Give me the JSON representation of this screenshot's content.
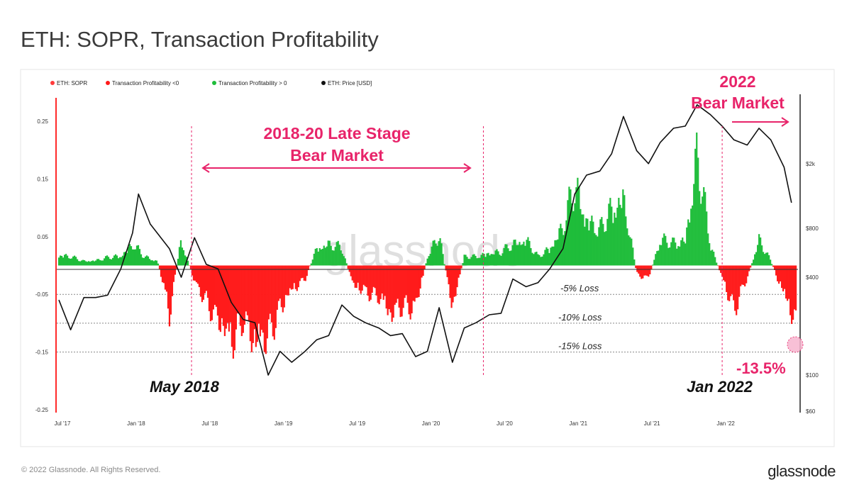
{
  "header": {
    "title": "ETH: SOPR, Transaction Profitability"
  },
  "footer": {
    "copyright": "© 2022 Glassnode. All Rights Reserved.",
    "brand": "glassnode"
  },
  "watermark": "glassnode",
  "colors": {
    "loss": "#ff1a1a",
    "profit": "#1fbd3a",
    "price": "#111111",
    "annotation": "#e8246a",
    "sopr": "#ff3b3b"
  },
  "chart_data": {
    "type": "bar",
    "title": "ETH: SOPR, Transaction Profitability",
    "legend": [
      {
        "name": "ETH: SOPR",
        "color": "#ff3b3b"
      },
      {
        "name": "Transaction Profitability <0",
        "color": "#ff1a1a"
      },
      {
        "name": "Transaction Profitability > 0",
        "color": "#1fbd3a"
      },
      {
        "name": "ETH: Price [USD]",
        "color": "#111111"
      }
    ],
    "legend_position": "top-left",
    "x_ticks": [
      "Jul '17",
      "Jan '18",
      "Jul '18",
      "Jan '19",
      "Jul '19",
      "Jan '20",
      "Jul '20",
      "Jan '21",
      "Jul '21",
      "Jan '22"
    ],
    "y_left": {
      "ticks": [
        "0.25",
        "0.15",
        "0.05",
        "-0.05",
        "-0.15",
        "-0.25"
      ],
      "range": [
        -0.25,
        0.25
      ]
    },
    "y_right": {
      "scale": "log",
      "ticks": [
        "$2k",
        "$800",
        "$400",
        "$100",
        "$60"
      ],
      "range": [
        60,
        4500
      ]
    },
    "reference_lines": [
      {
        "value": -0.05,
        "label": "-5% Loss"
      },
      {
        "value": -0.1,
        "label": "-10% Loss"
      },
      {
        "value": -0.15,
        "label": "-15% Loss"
      }
    ],
    "profitability": [
      {
        "x": 2017.5,
        "y": 0.025
      },
      {
        "x": 2017.58,
        "y": 0.02
      },
      {
        "x": 2017.67,
        "y": 0.01
      },
      {
        "x": 2017.75,
        "y": 0.012
      },
      {
        "x": 2017.83,
        "y": 0.018
      },
      {
        "x": 2017.92,
        "y": 0.022
      },
      {
        "x": 2018.0,
        "y": 0.05
      },
      {
        "x": 2018.08,
        "y": 0.02
      },
      {
        "x": 2018.17,
        "y": 0.01
      },
      {
        "x": 2018.25,
        "y": -0.11
      },
      {
        "x": 2018.33,
        "y": 0.06
      },
      {
        "x": 2018.42,
        "y": -0.04
      },
      {
        "x": 2018.5,
        "y": -0.08
      },
      {
        "x": 2018.58,
        "y": -0.13
      },
      {
        "x": 2018.67,
        "y": -0.18
      },
      {
        "x": 2018.75,
        "y": -0.12
      },
      {
        "x": 2018.83,
        "y": -0.19
      },
      {
        "x": 2018.92,
        "y": -0.16
      },
      {
        "x": 2019.0,
        "y": -0.1
      },
      {
        "x": 2019.08,
        "y": -0.06
      },
      {
        "x": 2019.17,
        "y": -0.03
      },
      {
        "x": 2019.25,
        "y": 0.04
      },
      {
        "x": 2019.33,
        "y": 0.05
      },
      {
        "x": 2019.42,
        "y": 0.04
      },
      {
        "x": 2019.5,
        "y": -0.05
      },
      {
        "x": 2019.58,
        "y": -0.06
      },
      {
        "x": 2019.67,
        "y": -0.07
      },
      {
        "x": 2019.75,
        "y": -0.12
      },
      {
        "x": 2019.83,
        "y": -0.09
      },
      {
        "x": 2019.92,
        "y": -0.1
      },
      {
        "x": 2020.0,
        "y": 0.02
      },
      {
        "x": 2020.08,
        "y": 0.07
      },
      {
        "x": 2020.17,
        "y": -0.1
      },
      {
        "x": 2020.25,
        "y": 0.02
      },
      {
        "x": 2020.33,
        "y": 0.02
      },
      {
        "x": 2020.42,
        "y": 0.03
      },
      {
        "x": 2020.5,
        "y": 0.03
      },
      {
        "x": 2020.58,
        "y": 0.05
      },
      {
        "x": 2020.67,
        "y": 0.06
      },
      {
        "x": 2020.75,
        "y": 0.02
      },
      {
        "x": 2020.83,
        "y": 0.04
      },
      {
        "x": 2020.92,
        "y": 0.09
      },
      {
        "x": 2021.0,
        "y": 0.18
      },
      {
        "x": 2021.08,
        "y": 0.11
      },
      {
        "x": 2021.17,
        "y": 0.08
      },
      {
        "x": 2021.25,
        "y": 0.13
      },
      {
        "x": 2021.33,
        "y": 0.16
      },
      {
        "x": 2021.42,
        "y": -0.02
      },
      {
        "x": 2021.5,
        "y": -0.03
      },
      {
        "x": 2021.58,
        "y": 0.06
      },
      {
        "x": 2021.67,
        "y": 0.05
      },
      {
        "x": 2021.75,
        "y": 0.06
      },
      {
        "x": 2021.83,
        "y": 0.25
      },
      {
        "x": 2021.92,
        "y": 0.05
      },
      {
        "x": 2022.0,
        "y": -0.03
      },
      {
        "x": 2022.08,
        "y": -0.1
      },
      {
        "x": 2022.17,
        "y": -0.03
      },
      {
        "x": 2022.25,
        "y": 0.06
      },
      {
        "x": 2022.33,
        "y": 0.01
      },
      {
        "x": 2022.42,
        "y": -0.07
      },
      {
        "x": 2022.5,
        "y": -0.135
      }
    ],
    "price": [
      {
        "x": 2017.5,
        "y": 290
      },
      {
        "x": 2017.58,
        "y": 190
      },
      {
        "x": 2017.67,
        "y": 300
      },
      {
        "x": 2017.75,
        "y": 300
      },
      {
        "x": 2017.83,
        "y": 310
      },
      {
        "x": 2017.92,
        "y": 450
      },
      {
        "x": 2018.0,
        "y": 750
      },
      {
        "x": 2018.04,
        "y": 1300
      },
      {
        "x": 2018.12,
        "y": 850
      },
      {
        "x": 2018.25,
        "y": 600
      },
      {
        "x": 2018.33,
        "y": 400
      },
      {
        "x": 2018.42,
        "y": 700
      },
      {
        "x": 2018.5,
        "y": 480
      },
      {
        "x": 2018.58,
        "y": 450
      },
      {
        "x": 2018.67,
        "y": 280
      },
      {
        "x": 2018.75,
        "y": 220
      },
      {
        "x": 2018.83,
        "y": 210
      },
      {
        "x": 2018.92,
        "y": 100
      },
      {
        "x": 2019.0,
        "y": 140
      },
      {
        "x": 2019.08,
        "y": 120
      },
      {
        "x": 2019.17,
        "y": 140
      },
      {
        "x": 2019.25,
        "y": 165
      },
      {
        "x": 2019.33,
        "y": 175
      },
      {
        "x": 2019.42,
        "y": 270
      },
      {
        "x": 2019.5,
        "y": 230
      },
      {
        "x": 2019.58,
        "y": 210
      },
      {
        "x": 2019.67,
        "y": 195
      },
      {
        "x": 2019.75,
        "y": 175
      },
      {
        "x": 2019.83,
        "y": 180
      },
      {
        "x": 2019.92,
        "y": 130
      },
      {
        "x": 2020.0,
        "y": 140
      },
      {
        "x": 2020.08,
        "y": 260
      },
      {
        "x": 2020.17,
        "y": 120
      },
      {
        "x": 2020.25,
        "y": 195
      },
      {
        "x": 2020.33,
        "y": 210
      },
      {
        "x": 2020.42,
        "y": 235
      },
      {
        "x": 2020.5,
        "y": 240
      },
      {
        "x": 2020.58,
        "y": 390
      },
      {
        "x": 2020.67,
        "y": 350
      },
      {
        "x": 2020.75,
        "y": 370
      },
      {
        "x": 2020.83,
        "y": 450
      },
      {
        "x": 2020.92,
        "y": 600
      },
      {
        "x": 2021.0,
        "y": 1300
      },
      {
        "x": 2021.08,
        "y": 1700
      },
      {
        "x": 2021.17,
        "y": 1800
      },
      {
        "x": 2021.25,
        "y": 2300
      },
      {
        "x": 2021.33,
        "y": 3900
      },
      {
        "x": 2021.42,
        "y": 2400
      },
      {
        "x": 2021.5,
        "y": 2000
      },
      {
        "x": 2021.58,
        "y": 2700
      },
      {
        "x": 2021.67,
        "y": 3300
      },
      {
        "x": 2021.75,
        "y": 3400
      },
      {
        "x": 2021.83,
        "y": 4600
      },
      {
        "x": 2021.92,
        "y": 4000
      },
      {
        "x": 2022.0,
        "y": 3400
      },
      {
        "x": 2022.08,
        "y": 2800
      },
      {
        "x": 2022.17,
        "y": 2600
      },
      {
        "x": 2022.25,
        "y": 3300
      },
      {
        "x": 2022.33,
        "y": 2800
      },
      {
        "x": 2022.42,
        "y": 1900
      },
      {
        "x": 2022.47,
        "y": 1150
      }
    ],
    "annotations": {
      "late_bear_l1": "2018-20 Late Stage",
      "late_bear_l2": "Bear Market",
      "bear_2022_l1": "2022",
      "bear_2022_l2": "Bear Market",
      "may_2018": "May 2018",
      "jan_2022": "Jan 2022",
      "current": "-13.5%"
    }
  }
}
